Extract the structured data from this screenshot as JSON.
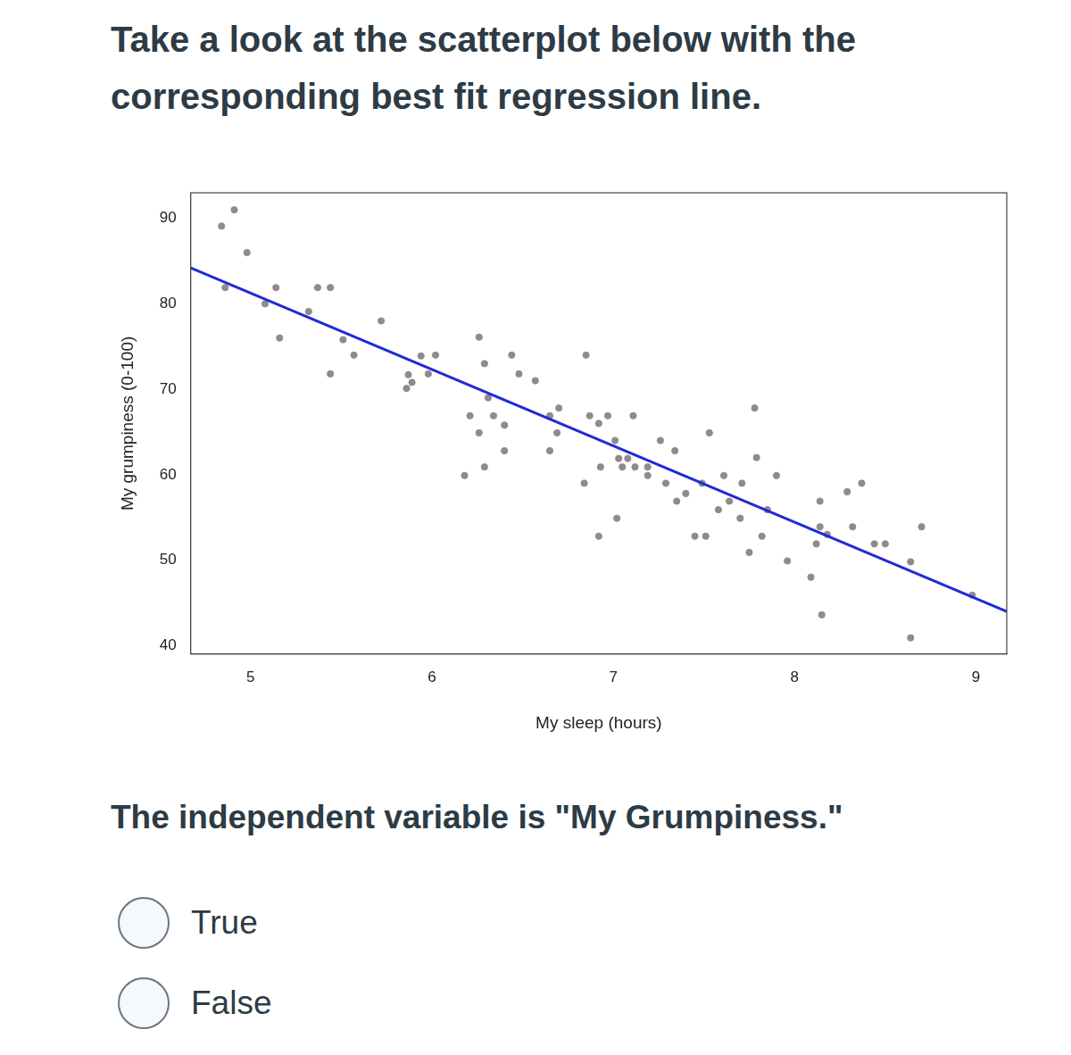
{
  "header": {
    "title": "Take a look at the scatterplot below with the corresponding best fit regression line."
  },
  "chart_data": {
    "type": "scatter",
    "x_label": "My sleep (hours)",
    "y_label": "My grumpiness (0-100)",
    "x": [
      4.84,
      4.91,
      4.98,
      4.86,
      5.08,
      5.14,
      5.16,
      5.32,
      5.37,
      5.44,
      5.44,
      5.51,
      5.57,
      5.72,
      5.86,
      5.87,
      5.89,
      5.94,
      6.02,
      5.98,
      6.18,
      6.21,
      6.26,
      6.26,
      6.29,
      6.29,
      6.31,
      6.34,
      6.4,
      6.4,
      6.44,
      6.48,
      6.57,
      6.65,
      6.65,
      6.69,
      6.7,
      6.85,
      6.84,
      6.87,
      6.92,
      6.92,
      6.93,
      6.97,
      7.01,
      7.02,
      7.03,
      7.05,
      7.08,
      7.11,
      7.12,
      7.19,
      7.19,
      7.26,
      7.29,
      7.34,
      7.35,
      7.4,
      7.45,
      7.51,
      7.49,
      7.53,
      7.58,
      7.61,
      7.64,
      7.7,
      7.71,
      7.75,
      7.78,
      7.79,
      7.82,
      7.85,
      7.9,
      7.96,
      8.09,
      8.12,
      8.14,
      8.14,
      8.15,
      8.18,
      8.29,
      8.32,
      8.37,
      8.44,
      8.5,
      8.64,
      8.64,
      8.7,
      8.98
    ],
    "values": [
      89.1,
      91.0,
      86.0,
      81.9,
      80.0,
      81.9,
      76.0,
      79.1,
      81.9,
      81.9,
      71.8,
      75.8,
      74.0,
      78.0,
      70.1,
      71.7,
      70.8,
      73.9,
      74.0,
      71.8,
      59.9,
      66.9,
      76.1,
      64.9,
      73.0,
      60.9,
      69.0,
      66.9,
      65.8,
      62.8,
      74.0,
      71.8,
      71.0,
      62.8,
      66.9,
      64.9,
      67.8,
      74.0,
      59.0,
      66.9,
      66.0,
      52.8,
      60.9,
      66.9,
      64.0,
      54.9,
      61.9,
      60.9,
      61.9,
      66.9,
      60.9,
      59.9,
      60.9,
      64.0,
      59.0,
      62.8,
      56.9,
      57.8,
      52.8,
      52.8,
      59.0,
      64.9,
      55.9,
      59.9,
      56.9,
      54.9,
      59.0,
      50.9,
      67.8,
      62.0,
      52.8,
      55.9,
      59.9,
      49.9,
      48.0,
      51.9,
      56.9,
      53.9,
      43.6,
      53.0,
      58.0,
      53.9,
      59.0,
      51.9,
      51.9,
      49.8,
      40.9,
      53.9,
      45.9
    ],
    "color": "#8c8c8c",
    "marker": "circle",
    "regression_line": {
      "x": [
        4.67,
        9.17
      ],
      "values": [
        84.21,
        43.98
      ],
      "color": "#1f2bd6"
    },
    "xlim": [
      4.67,
      9.17
    ],
    "xticks": [
      5,
      6,
      7,
      8,
      9
    ],
    "ylim": [
      39,
      93
    ],
    "yticks": [
      40,
      50,
      60,
      70,
      80,
      90
    ],
    "grid": false
  },
  "question": {
    "text": "The independent variable is \"My Grumpiness.\"",
    "options": [
      "True",
      "False"
    ]
  }
}
